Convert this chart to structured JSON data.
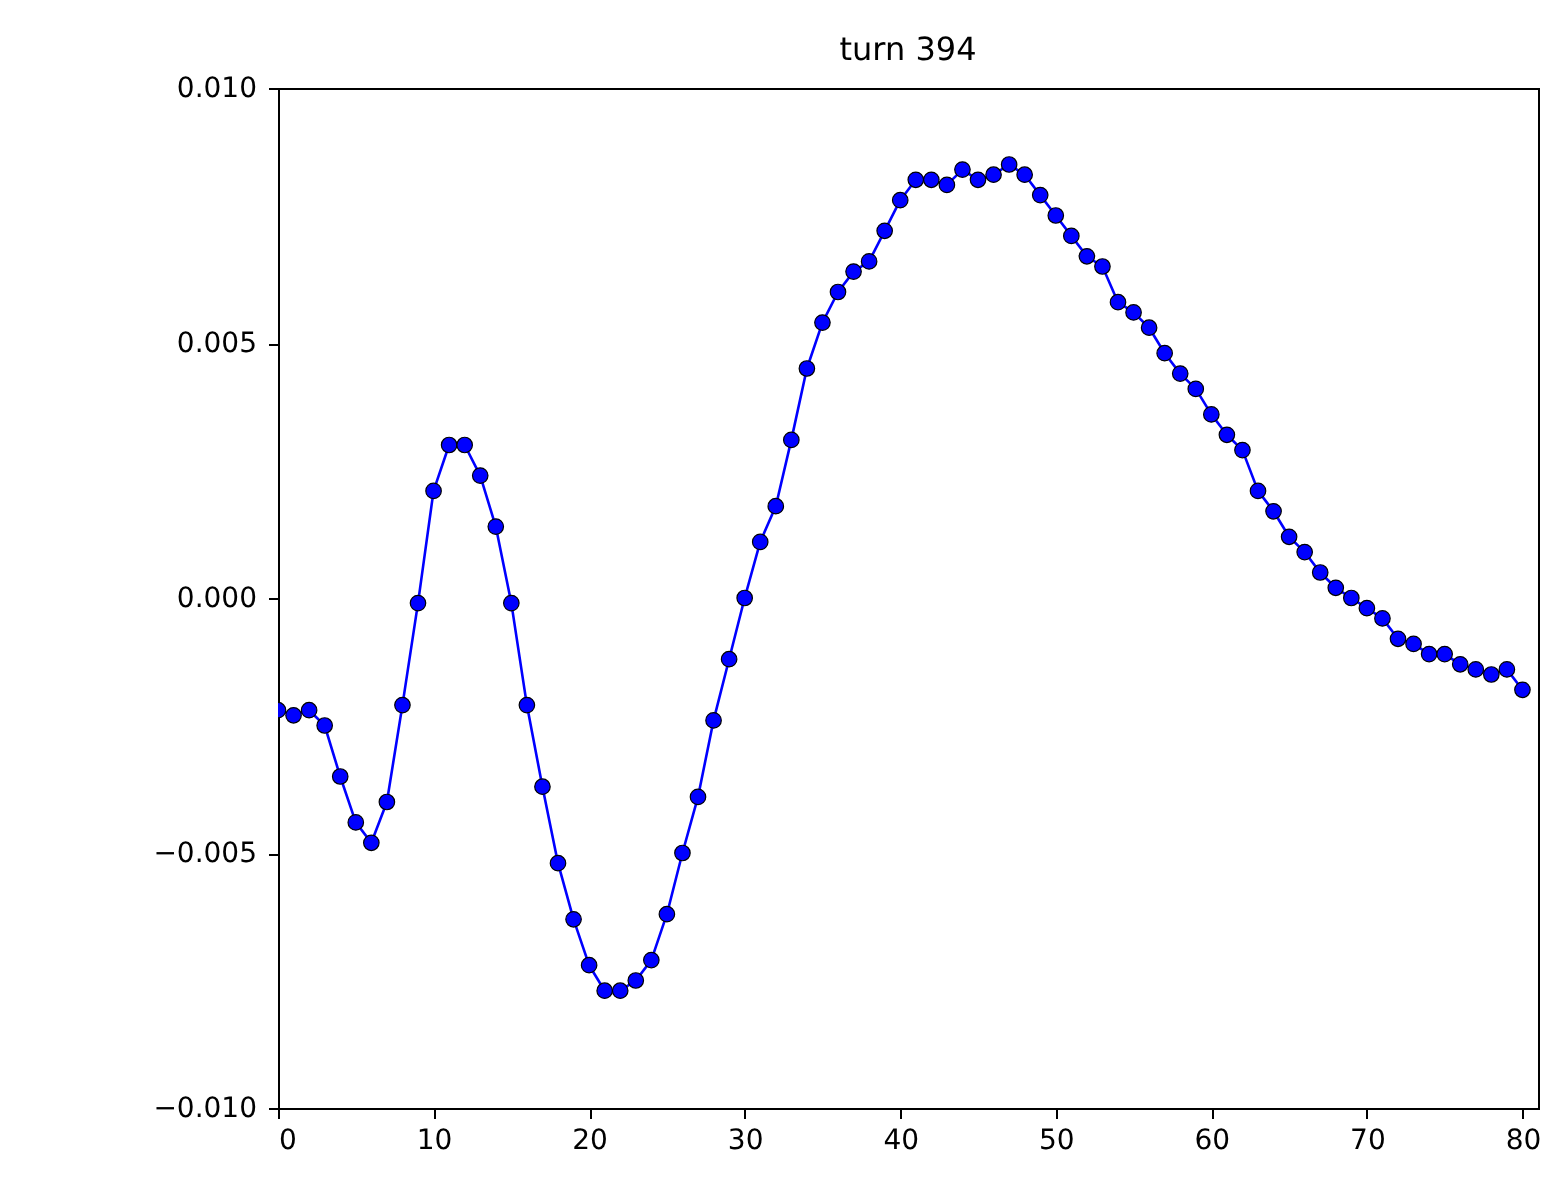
{
  "chart_data": {
    "type": "line",
    "title": "turn 394",
    "marker": "circle",
    "line_style": "solid",
    "grid": false,
    "x": [
      0,
      1,
      2,
      3,
      4,
      5,
      6,
      7,
      8,
      9,
      10,
      11,
      12,
      13,
      14,
      15,
      16,
      17,
      18,
      19,
      20,
      21,
      22,
      23,
      24,
      25,
      26,
      27,
      28,
      29,
      30,
      31,
      32,
      33,
      34,
      35,
      36,
      37,
      38,
      39,
      40,
      41,
      42,
      43,
      44,
      45,
      46,
      47,
      48,
      49,
      50,
      51,
      52,
      53,
      54,
      55,
      56,
      57,
      58,
      59,
      60,
      61,
      62,
      63,
      64,
      65,
      66,
      67,
      68,
      69,
      70,
      71,
      72,
      73,
      74,
      75,
      76,
      77,
      78,
      79,
      80
    ],
    "series": [
      {
        "color": "#0000ff",
        "values": [
          -0.0022,
          -0.0023,
          -0.0022,
          -0.0025,
          -0.0035,
          -0.0044,
          -0.0048,
          -0.004,
          -0.0021,
          -0.0001,
          0.0021,
          0.003,
          0.003,
          0.0024,
          0.0014,
          -0.0001,
          -0.0021,
          -0.0037,
          -0.0052,
          -0.0063,
          -0.0072,
          -0.0077,
          -0.0077,
          -0.0075,
          -0.0071,
          -0.0062,
          -0.005,
          -0.0039,
          -0.0024,
          -0.0012,
          0.0,
          0.0011,
          0.0018,
          0.0031,
          0.0045,
          0.0054,
          0.006,
          0.0064,
          0.0066,
          0.0072,
          0.0078,
          0.0082,
          0.0082,
          0.0081,
          0.0084,
          0.0082,
          0.0083,
          0.0085,
          0.0083,
          0.0079,
          0.0075,
          0.0071,
          0.0067,
          0.0065,
          0.0058,
          0.0056,
          0.0053,
          0.0048,
          0.0044,
          0.0041,
          0.0036,
          0.0032,
          0.0029,
          0.0021,
          0.0017,
          0.0012,
          0.0009,
          0.0005,
          0.0002,
          0.0,
          -0.0002,
          -0.0004,
          -0.0008,
          -0.0009,
          -0.0011,
          -0.0011,
          -0.0013,
          -0.0014,
          -0.0015,
          -0.0014,
          -0.0018
        ]
      }
    ],
    "xlim": [
      0,
      81
    ],
    "xticks": [
      0,
      10,
      20,
      30,
      40,
      50,
      60,
      70,
      80
    ],
    "ylim": [
      -0.01,
      0.01
    ],
    "yticks": [
      {
        "value": -0.01,
        "label": "−0.010"
      },
      {
        "value": -0.005,
        "label": "−0.005"
      },
      {
        "value": 0,
        "label": "0.000"
      },
      {
        "value": 0.005,
        "label": "0.005"
      },
      {
        "value": 0.01,
        "label": "0.010"
      }
    ]
  }
}
